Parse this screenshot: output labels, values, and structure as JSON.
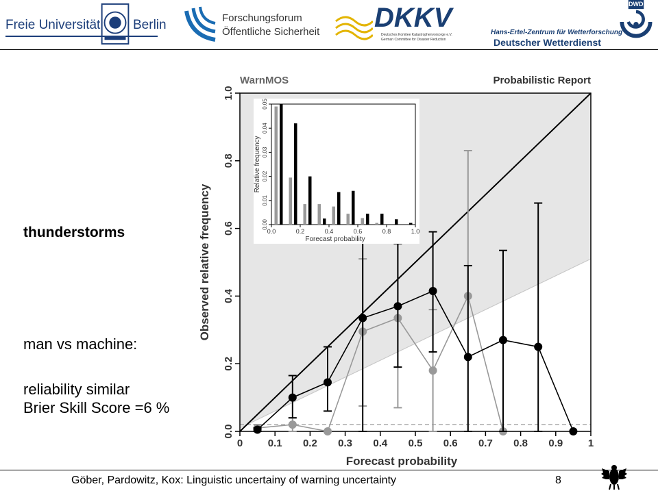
{
  "header": {
    "logo_fu": {
      "word1": "Freie Universität",
      "word2": "Berlin"
    },
    "logo_forum": {
      "line1": "Forschungsforum",
      "line2": "Öffentliche Sicherheit"
    },
    "logo_dkkv": {
      "name": "DKKV",
      "line1": "Deutsches Komitee Katastrophenvorsorge e.V.",
      "line2": "German Committee for Disaster Reduction"
    },
    "logo_dwd": {
      "line1": "Hans-Ertel-Zentrum für Wetterforschung",
      "line2": "Deutscher Wetterdienst",
      "mark": "DWD"
    }
  },
  "side": {
    "topic": "thunderstorms",
    "line1": "man vs machine:",
    "line2": "reliability similar",
    "line3": "Brier Skill Score =6 %"
  },
  "footer": {
    "text": "Göber, Pardowitz, Kox: Linguistic uncertainy of warning uncertainty",
    "page": "8"
  },
  "chart_data": {
    "type": "line",
    "title_left": "WarnMOS",
    "title_right": "Probabilistic Report",
    "xlabel": "Forecast probability",
    "ylabel": "Observed relative frequency",
    "xlim": [
      0,
      1
    ],
    "ylim": [
      0,
      1
    ],
    "xticks": [
      "0",
      "0.1",
      "0.2",
      "0.3",
      "0.4",
      "0.5",
      "0.6",
      "0.7",
      "0.8",
      "0.9",
      "1"
    ],
    "yticks": [
      "0.0",
      "0.2",
      "0.4",
      "0.6",
      "0.8",
      "1.0"
    ],
    "climatology": 0.02,
    "colors": {
      "warnmos": "#000000",
      "report": "#999999",
      "shade": "#e6e6e6"
    },
    "series": [
      {
        "id": "warnmos",
        "x": [
          0.05,
          0.15,
          0.25,
          0.35,
          0.45,
          0.55,
          0.65,
          0.75,
          0.85,
          0.95
        ],
        "y": [
          0.005,
          0.1,
          0.145,
          0.335,
          0.37,
          0.415,
          0.22,
          0.27,
          0.25,
          0.0
        ],
        "lo": [
          0.0,
          0.04,
          0.06,
          0.0,
          0.19,
          0.235,
          0.0,
          0.0,
          0.0,
          0.0
        ],
        "hi": [
          0.01,
          0.165,
          0.25,
          0.71,
          0.555,
          0.59,
          0.49,
          0.535,
          0.675,
          0.0
        ]
      },
      {
        "id": "report",
        "x": [
          0.05,
          0.15,
          0.25,
          0.35,
          0.45,
          0.55,
          0.65,
          0.75
        ],
        "y": [
          0.01,
          0.02,
          0.0,
          0.295,
          0.335,
          0.18,
          0.4,
          0.0
        ],
        "lo": [
          0.0,
          0.0,
          0.0,
          0.075,
          0.07,
          0.0,
          0.0,
          0.0
        ],
        "hi": [
          0.02,
          0.04,
          0.0,
          0.51,
          0.6,
          0.36,
          0.83,
          0.0
        ]
      }
    ],
    "inset": {
      "type": "bar",
      "xlabel": "Forecast probability",
      "ylabel": "Relative frequency",
      "xlim": [
        0,
        1
      ],
      "ylim": [
        0,
        0.05
      ],
      "xticks": [
        "0.0",
        "0.2",
        "0.4",
        "0.6",
        "0.8",
        "1.0"
      ],
      "yticks": [
        "0.00",
        "0.01",
        "0.02",
        "0.03",
        "0.04",
        "0.05"
      ],
      "x": [
        0.05,
        0.15,
        0.25,
        0.35,
        0.45,
        0.55,
        0.65,
        0.75,
        0.85,
        0.95
      ],
      "warnmos": [
        0.05,
        0.042,
        0.02,
        0.0025,
        0.0135,
        0.014,
        0.0045,
        0.0045,
        0.0022,
        0.0007
      ],
      "report": [
        0.049,
        0.0195,
        0.0085,
        0.0085,
        0.0075,
        0.0045,
        0.0027,
        0.0007,
        0.0,
        0.0
      ]
    }
  }
}
